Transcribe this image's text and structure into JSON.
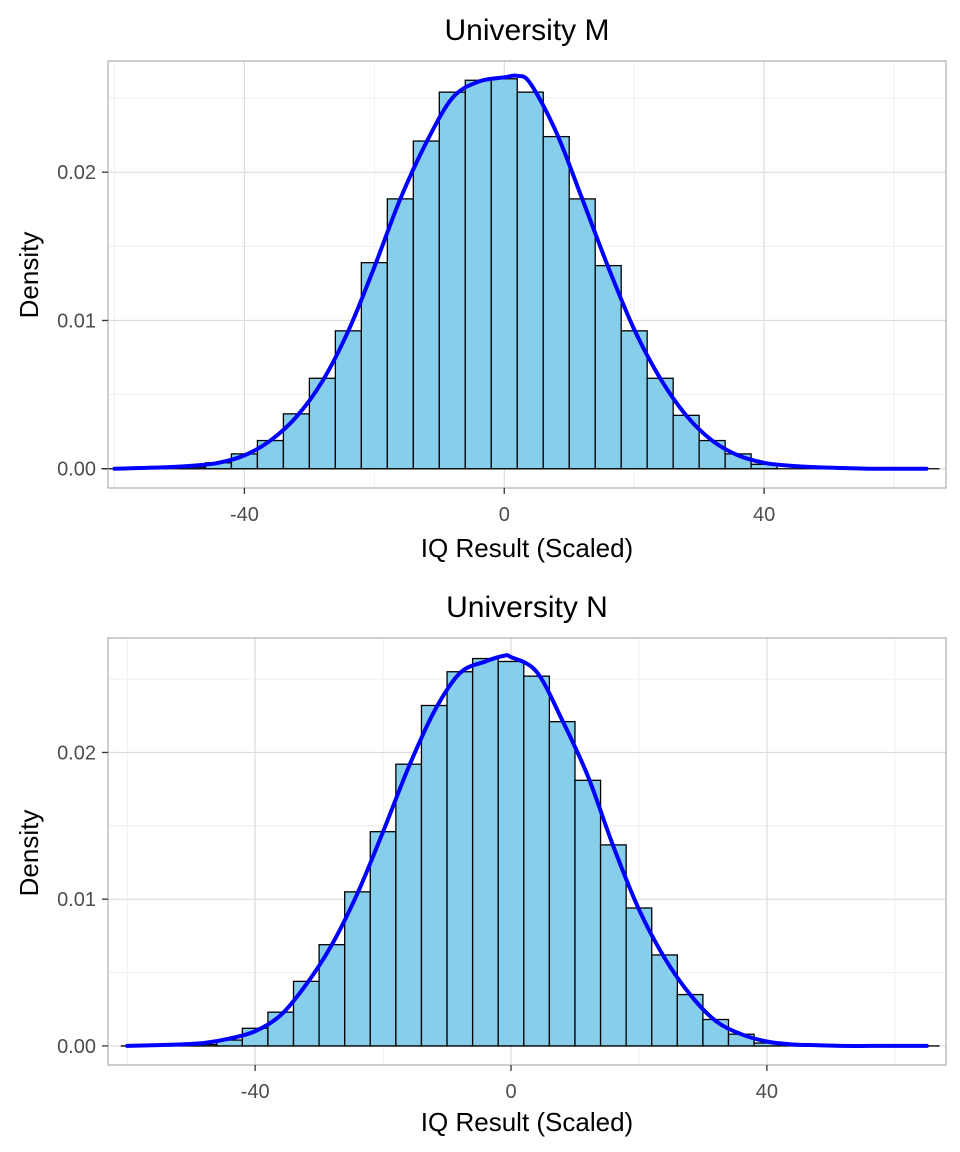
{
  "chart_data": [
    {
      "type": "bar",
      "title": "University M",
      "xlabel": "IQ Result (Scaled)",
      "ylabel": "Density",
      "xlim": [
        -61,
        68
      ],
      "ylim": [
        -0.0013,
        0.0275
      ],
      "x_ticks": [
        -40,
        0,
        40
      ],
      "x_tick_labels": [
        "-40",
        "0",
        "40"
      ],
      "y_ticks": [
        0.0,
        0.01,
        0.02
      ],
      "y_tick_labels": [
        "0.00",
        "0.01",
        "0.02"
      ],
      "grid": true,
      "bar_color": "#87CEEB",
      "curve_color": "#0000FF",
      "bins": {
        "centers": [
          -48,
          -44,
          -40,
          -36,
          -32,
          -28,
          -24,
          -20,
          -16,
          -12,
          -8,
          -4,
          0,
          4,
          8,
          12,
          16,
          20,
          24,
          28,
          32,
          36,
          40
        ],
        "width": 4,
        "values": [
          0.0001,
          0.0004,
          0.001,
          0.0019,
          0.0037,
          0.0061,
          0.0093,
          0.0139,
          0.0182,
          0.0221,
          0.0254,
          0.0262,
          0.0263,
          0.0254,
          0.0224,
          0.0182,
          0.0137,
          0.0093,
          0.0061,
          0.0036,
          0.0019,
          0.001,
          0.0003
        ]
      },
      "baseline_range": [
        -62,
        67
      ],
      "density": {
        "x": [
          -60,
          -56,
          -52,
          -48,
          -44,
          -40,
          -36,
          -32,
          -28,
          -24,
          -20,
          -16,
          -12,
          -8,
          -4,
          0,
          2,
          4,
          8,
          12,
          16,
          20,
          24,
          28,
          32,
          36,
          40,
          44,
          48,
          52,
          56,
          60,
          65
        ],
        "y": [
          0.0,
          5e-05,
          0.0001,
          0.0002,
          0.0004,
          0.0009,
          0.0019,
          0.0035,
          0.0059,
          0.0093,
          0.0136,
          0.0182,
          0.022,
          0.025,
          0.0261,
          0.0264,
          0.0265,
          0.026,
          0.0227,
          0.0182,
          0.0136,
          0.0094,
          0.0061,
          0.0036,
          0.0019,
          0.0009,
          0.0004,
          0.0002,
          0.0001,
          5e-05,
          0.0,
          0.0,
          0.0
        ]
      }
    },
    {
      "type": "bar",
      "title": "University N",
      "xlabel": "IQ Result (Scaled)",
      "ylabel": "Density",
      "xlim": [
        -63,
        68
      ],
      "ylim": [
        -0.0013,
        0.0278
      ],
      "x_ticks": [
        -40,
        0,
        40
      ],
      "x_tick_labels": [
        "-40",
        "0",
        "40"
      ],
      "y_ticks": [
        0.0,
        0.01,
        0.02
      ],
      "y_tick_labels": [
        "0.00",
        "0.01",
        "0.02"
      ],
      "grid": true,
      "bar_color": "#87CEEB",
      "curve_color": "#0000FF",
      "bins": {
        "centers": [
          -48,
          -44,
          -40,
          -36,
          -32,
          -28,
          -24,
          -20,
          -16,
          -12,
          -8,
          -4,
          0,
          4,
          8,
          12,
          16,
          20,
          24,
          28,
          32,
          36,
          40
        ],
        "width": 4,
        "values": [
          0.0001,
          0.0004,
          0.0012,
          0.0023,
          0.0044,
          0.0069,
          0.0105,
          0.0146,
          0.0192,
          0.0232,
          0.0255,
          0.0264,
          0.0262,
          0.0252,
          0.0221,
          0.0181,
          0.0137,
          0.0094,
          0.0062,
          0.0035,
          0.0018,
          0.0008,
          0.0002
        ]
      },
      "baseline_range": [
        -61,
        67
      ],
      "density": {
        "x": [
          -60,
          -56,
          -52,
          -48,
          -44,
          -40,
          -36,
          -32,
          -28,
          -24,
          -20,
          -16,
          -12,
          -8,
          -4,
          -1,
          0,
          4,
          8,
          12,
          16,
          20,
          24,
          28,
          32,
          36,
          40,
          44,
          48,
          52,
          56,
          60,
          65
        ],
        "y": [
          0.0,
          5e-05,
          0.0001,
          0.0002,
          0.0005,
          0.001,
          0.0021,
          0.0042,
          0.0069,
          0.0104,
          0.0146,
          0.019,
          0.0228,
          0.0254,
          0.0262,
          0.0266,
          0.0265,
          0.0255,
          0.0222,
          0.0184,
          0.0136,
          0.0093,
          0.006,
          0.0035,
          0.0017,
          0.0008,
          0.0003,
          0.0001,
          5e-05,
          0.0,
          0.0,
          0.0,
          0.0
        ]
      }
    }
  ]
}
